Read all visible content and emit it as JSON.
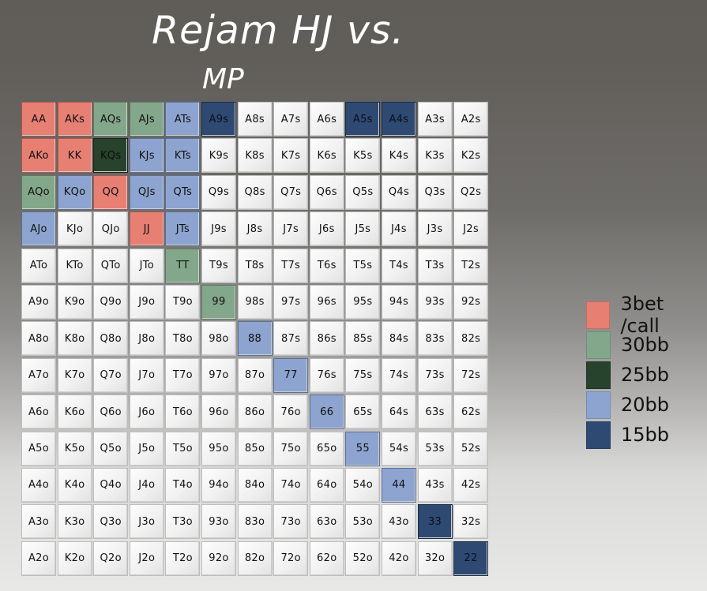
{
  "header": {
    "title": "Rejam HJ vs.",
    "subtitle": "MP"
  },
  "colors": {
    "pink": "#e77f73",
    "lgreen": "#83a78a",
    "dgreen": "#27422d",
    "lblue": "#8ca4cf",
    "dblue": "#2e4a72"
  },
  "grid": {
    "rows": [
      [
        [
          "AA",
          "pink"
        ],
        [
          "AKs",
          "pink"
        ],
        [
          "AQs",
          "lgreen"
        ],
        [
          "AJs",
          "lgreen"
        ],
        [
          "ATs",
          "lblue"
        ],
        [
          "A9s",
          "dblue"
        ],
        [
          "A8s",
          ""
        ],
        [
          "A7s",
          ""
        ],
        [
          "A6s",
          ""
        ],
        [
          "A5s",
          "dblue"
        ],
        [
          "A4s",
          "dblue"
        ],
        [
          "A3s",
          ""
        ],
        [
          "A2s",
          ""
        ]
      ],
      [
        [
          "AKo",
          "pink"
        ],
        [
          "KK",
          "pink"
        ],
        [
          "KQs",
          "dgreen"
        ],
        [
          "KJs",
          "lblue"
        ],
        [
          "KTs",
          "lblue"
        ],
        [
          "K9s",
          ""
        ],
        [
          "K8s",
          ""
        ],
        [
          "K7s",
          ""
        ],
        [
          "K6s",
          ""
        ],
        [
          "K5s",
          ""
        ],
        [
          "K4s",
          ""
        ],
        [
          "K3s",
          ""
        ],
        [
          "K2s",
          ""
        ]
      ],
      [
        [
          "AQo",
          "lgreen"
        ],
        [
          "KQo",
          "lblue"
        ],
        [
          "QQ",
          "pink"
        ],
        [
          "QJs",
          "lblue"
        ],
        [
          "QTs",
          "lblue"
        ],
        [
          "Q9s",
          ""
        ],
        [
          "Q8s",
          ""
        ],
        [
          "Q7s",
          ""
        ],
        [
          "Q6s",
          ""
        ],
        [
          "Q5s",
          ""
        ],
        [
          "Q4s",
          ""
        ],
        [
          "Q3s",
          ""
        ],
        [
          "Q2s",
          ""
        ]
      ],
      [
        [
          "AJo",
          "lblue"
        ],
        [
          "KJo",
          ""
        ],
        [
          "QJo",
          ""
        ],
        [
          "JJ",
          "pink"
        ],
        [
          "JTs",
          "lblue"
        ],
        [
          "J9s",
          ""
        ],
        [
          "J8s",
          ""
        ],
        [
          "J7s",
          ""
        ],
        [
          "J6s",
          ""
        ],
        [
          "J5s",
          ""
        ],
        [
          "J4s",
          ""
        ],
        [
          "J3s",
          ""
        ],
        [
          "J2s",
          ""
        ]
      ],
      [
        [
          "ATo",
          ""
        ],
        [
          "KTo",
          ""
        ],
        [
          "QTo",
          ""
        ],
        [
          "JTo",
          ""
        ],
        [
          "TT",
          "lgreen"
        ],
        [
          "T9s",
          ""
        ],
        [
          "T8s",
          ""
        ],
        [
          "T7s",
          ""
        ],
        [
          "T6s",
          ""
        ],
        [
          "T5s",
          ""
        ],
        [
          "T4s",
          ""
        ],
        [
          "T3s",
          ""
        ],
        [
          "T2s",
          ""
        ]
      ],
      [
        [
          "A9o",
          ""
        ],
        [
          "K9o",
          ""
        ],
        [
          "Q9o",
          ""
        ],
        [
          "J9o",
          ""
        ],
        [
          "T9o",
          ""
        ],
        [
          "99",
          "lgreen"
        ],
        [
          "98s",
          ""
        ],
        [
          "97s",
          ""
        ],
        [
          "96s",
          ""
        ],
        [
          "95s",
          ""
        ],
        [
          "94s",
          ""
        ],
        [
          "93s",
          ""
        ],
        [
          "92s",
          ""
        ]
      ],
      [
        [
          "A8o",
          ""
        ],
        [
          "K8o",
          ""
        ],
        [
          "Q8o",
          ""
        ],
        [
          "J8o",
          ""
        ],
        [
          "T8o",
          ""
        ],
        [
          "98o",
          ""
        ],
        [
          "88",
          "lblue"
        ],
        [
          "87s",
          ""
        ],
        [
          "86s",
          ""
        ],
        [
          "85s",
          ""
        ],
        [
          "84s",
          ""
        ],
        [
          "83s",
          ""
        ],
        [
          "82s",
          ""
        ]
      ],
      [
        [
          "A7o",
          ""
        ],
        [
          "K7o",
          ""
        ],
        [
          "Q7o",
          ""
        ],
        [
          "J7o",
          ""
        ],
        [
          "T7o",
          ""
        ],
        [
          "97o",
          ""
        ],
        [
          "87o",
          ""
        ],
        [
          "77",
          "lblue"
        ],
        [
          "76s",
          ""
        ],
        [
          "75s",
          ""
        ],
        [
          "74s",
          ""
        ],
        [
          "73s",
          ""
        ],
        [
          "72s",
          ""
        ]
      ],
      [
        [
          "A6o",
          ""
        ],
        [
          "K6o",
          ""
        ],
        [
          "Q6o",
          ""
        ],
        [
          "J6o",
          ""
        ],
        [
          "T6o",
          ""
        ],
        [
          "96o",
          ""
        ],
        [
          "86o",
          ""
        ],
        [
          "76o",
          ""
        ],
        [
          "66",
          "lblue"
        ],
        [
          "65s",
          ""
        ],
        [
          "64s",
          ""
        ],
        [
          "63s",
          ""
        ],
        [
          "62s",
          ""
        ]
      ],
      [
        [
          "A5o",
          ""
        ],
        [
          "K5o",
          ""
        ],
        [
          "Q5o",
          ""
        ],
        [
          "J5o",
          ""
        ],
        [
          "T5o",
          ""
        ],
        [
          "95o",
          ""
        ],
        [
          "85o",
          ""
        ],
        [
          "75o",
          ""
        ],
        [
          "65o",
          ""
        ],
        [
          "55",
          "lblue"
        ],
        [
          "54s",
          ""
        ],
        [
          "53s",
          ""
        ],
        [
          "52s",
          ""
        ]
      ],
      [
        [
          "A4o",
          ""
        ],
        [
          "K4o",
          ""
        ],
        [
          "Q4o",
          ""
        ],
        [
          "J4o",
          ""
        ],
        [
          "T4o",
          ""
        ],
        [
          "94o",
          ""
        ],
        [
          "84o",
          ""
        ],
        [
          "74o",
          ""
        ],
        [
          "64o",
          ""
        ],
        [
          "54o",
          ""
        ],
        [
          "44",
          "lblue"
        ],
        [
          "43s",
          ""
        ],
        [
          "42s",
          ""
        ]
      ],
      [
        [
          "A3o",
          ""
        ],
        [
          "K3o",
          ""
        ],
        [
          "Q3o",
          ""
        ],
        [
          "J3o",
          ""
        ],
        [
          "T3o",
          ""
        ],
        [
          "93o",
          ""
        ],
        [
          "83o",
          ""
        ],
        [
          "73o",
          ""
        ],
        [
          "63o",
          ""
        ],
        [
          "53o",
          ""
        ],
        [
          "43o",
          ""
        ],
        [
          "33",
          "dblue"
        ],
        [
          "32s",
          ""
        ]
      ],
      [
        [
          "A2o",
          ""
        ],
        [
          "K2o",
          ""
        ],
        [
          "Q2o",
          ""
        ],
        [
          "J2o",
          ""
        ],
        [
          "T2o",
          ""
        ],
        [
          "92o",
          ""
        ],
        [
          "82o",
          ""
        ],
        [
          "72o",
          ""
        ],
        [
          "62o",
          ""
        ],
        [
          "52o",
          ""
        ],
        [
          "42o",
          ""
        ],
        [
          "32o",
          ""
        ],
        [
          "22",
          "dblue"
        ]
      ]
    ]
  },
  "legend": [
    {
      "label": "3bet /call",
      "color": "#e77f73"
    },
    {
      "label": "30bb",
      "color": "#83a78a"
    },
    {
      "label": "25bb",
      "color": "#27422d"
    },
    {
      "label": "20bb",
      "color": "#8ca4cf"
    },
    {
      "label": "15bb",
      "color": "#2e4a72"
    }
  ]
}
